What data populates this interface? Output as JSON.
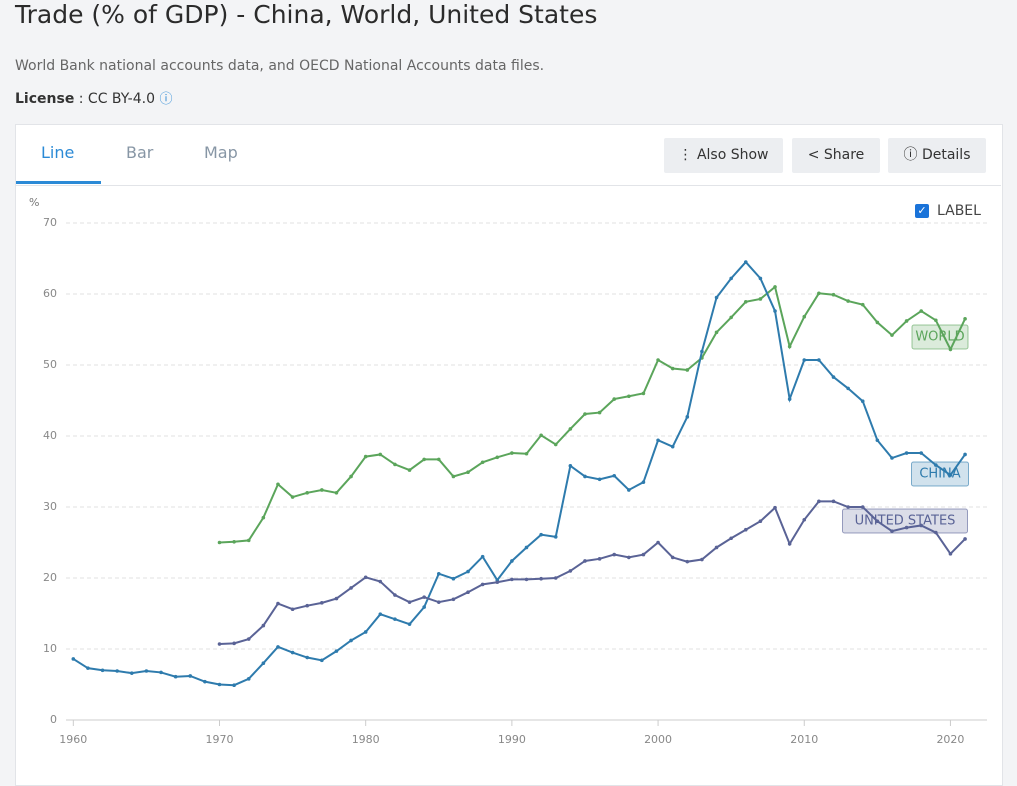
{
  "header": {
    "title": "Trade (% of GDP) - China, World, United States",
    "source": "World Bank national accounts data, and OECD National Accounts data files.",
    "license_label": "License",
    "license_value": ": CC BY-4.0"
  },
  "tabs": [
    "Line",
    "Bar",
    "Map"
  ],
  "buttons": [
    "Also Show",
    "Share",
    "Details"
  ],
  "label_toggle": "LABEL",
  "chart_data": {
    "type": "line",
    "y_label": "%",
    "x": [
      1960,
      1961,
      1962,
      1963,
      1964,
      1965,
      1966,
      1967,
      1968,
      1969,
      1970,
      1971,
      1972,
      1973,
      1974,
      1975,
      1976,
      1977,
      1978,
      1979,
      1980,
      1981,
      1982,
      1983,
      1984,
      1985,
      1986,
      1987,
      1988,
      1989,
      1990,
      1991,
      1992,
      1993,
      1994,
      1995,
      1996,
      1997,
      1998,
      1999,
      2000,
      2001,
      2002,
      2003,
      2004,
      2005,
      2006,
      2007,
      2008,
      2009,
      2010,
      2011,
      2012,
      2013,
      2014,
      2015,
      2016,
      2017,
      2018,
      2019,
      2020,
      2021
    ],
    "series": [
      {
        "name": "WORLD",
        "color": "#5ba55b",
        "values": [
          null,
          null,
          null,
          null,
          null,
          null,
          null,
          null,
          null,
          null,
          25.0,
          25.1,
          25.3,
          28.5,
          33.2,
          31.4,
          32.0,
          32.4,
          32.0,
          34.3,
          37.1,
          37.4,
          36.0,
          35.2,
          36.7,
          36.7,
          34.3,
          34.9,
          36.3,
          37.0,
          37.6,
          37.5,
          40.1,
          38.8,
          41.0,
          43.1,
          43.3,
          45.2,
          45.6,
          46.0,
          50.7,
          49.5,
          49.3,
          51.0,
          54.6,
          56.7,
          58.9,
          59.3,
          61.0,
          52.6,
          56.8,
          60.1,
          59.9,
          59.0,
          58.5,
          56.0,
          54.2,
          56.2,
          57.6,
          56.3,
          52.2,
          56.5
        ]
      },
      {
        "name": "CHINA",
        "color": "#2e7bad",
        "values": [
          8.6,
          7.3,
          7.0,
          6.9,
          6.6,
          6.9,
          6.7,
          6.1,
          6.2,
          5.4,
          5.0,
          4.9,
          5.8,
          8.0,
          10.3,
          9.5,
          8.8,
          8.4,
          9.7,
          11.2,
          12.4,
          14.9,
          14.2,
          13.5,
          15.9,
          20.6,
          19.9,
          20.9,
          23.0,
          19.7,
          22.4,
          24.3,
          26.1,
          25.8,
          35.8,
          34.3,
          33.9,
          34.4,
          32.4,
          33.5,
          39.4,
          38.5,
          42.7,
          51.9,
          59.5,
          62.2,
          64.5,
          62.2,
          57.6,
          45.2,
          50.7,
          50.7,
          48.3,
          46.7,
          44.9,
          39.4,
          36.9,
          37.6,
          37.6,
          35.9,
          34.5,
          37.4
        ]
      },
      {
        "name": "UNITED STATES",
        "color": "#5a6396",
        "values": [
          null,
          null,
          null,
          null,
          null,
          null,
          null,
          null,
          null,
          null,
          10.7,
          10.8,
          11.4,
          13.3,
          16.4,
          15.6,
          16.1,
          16.5,
          17.1,
          18.6,
          20.1,
          19.5,
          17.6,
          16.6,
          17.3,
          16.6,
          17.0,
          18.0,
          19.1,
          19.4,
          19.8,
          19.8,
          19.9,
          20.0,
          21.0,
          22.4,
          22.7,
          23.3,
          22.9,
          23.3,
          25.0,
          22.9,
          22.3,
          22.6,
          24.3,
          25.6,
          26.8,
          28.0,
          29.9,
          24.8,
          28.2,
          30.8,
          30.8,
          30.0,
          30.0,
          28.0,
          26.6,
          27.1,
          27.4,
          26.4,
          23.4,
          25.5
        ]
      }
    ],
    "xlim": [
      1959.5,
      2022.5
    ],
    "xticks": [
      1960,
      1970,
      1980,
      1990,
      2000,
      2010,
      2020
    ],
    "ylim": [
      0,
      70
    ],
    "yticks": [
      0,
      10,
      20,
      30,
      40,
      50,
      60,
      70
    ],
    "grid": true
  }
}
